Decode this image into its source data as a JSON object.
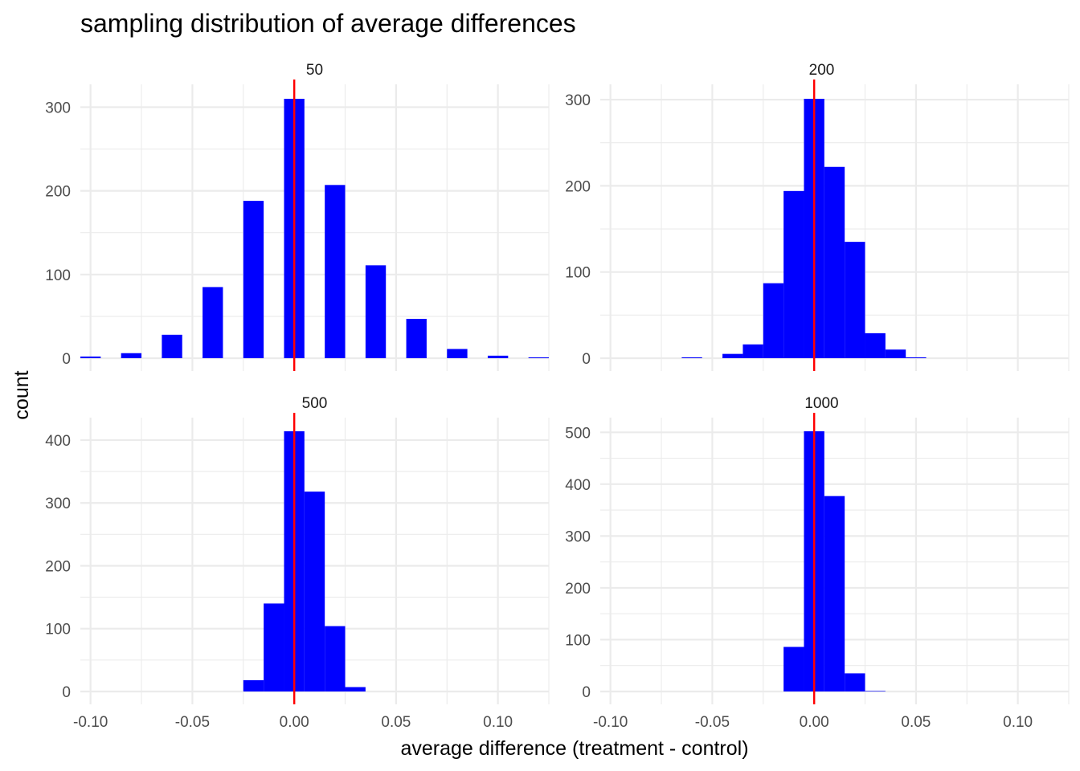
{
  "chart_data": {
    "type": "bar",
    "title": "sampling distribution of average differences",
    "xlabel": "average difference (treatment - control)",
    "ylabel": "count",
    "xlim": [
      -0.105,
      0.125
    ],
    "x_ticks": [
      -0.1,
      -0.05,
      0.0,
      0.05,
      0.1
    ],
    "x_tick_labels": [
      "-0.10",
      "-0.05",
      "0.00",
      "0.05",
      "0.10"
    ],
    "grid": true,
    "bar_color": "#0000ff",
    "reference_line": {
      "x": 0,
      "color": "#ff0000"
    },
    "panels": [
      {
        "label": "50",
        "ylim": [
          0,
          330
        ],
        "y_ticks": [
          0,
          100,
          200,
          300
        ],
        "bin_width": 0.01,
        "bins": [
          {
            "x": -0.1,
            "count": 2
          },
          {
            "x": -0.08,
            "count": 6
          },
          {
            "x": -0.06,
            "count": 28
          },
          {
            "x": -0.04,
            "count": 85
          },
          {
            "x": -0.02,
            "count": 188
          },
          {
            "x": 0.0,
            "count": 310
          },
          {
            "x": 0.02,
            "count": 207
          },
          {
            "x": 0.04,
            "count": 111
          },
          {
            "x": 0.06,
            "count": 47
          },
          {
            "x": 0.08,
            "count": 11
          },
          {
            "x": 0.1,
            "count": 3
          },
          {
            "x": 0.12,
            "count": 1
          }
        ]
      },
      {
        "label": "200",
        "ylim": [
          0,
          315
        ],
        "y_ticks": [
          0,
          100,
          200,
          300
        ],
        "bin_width": 0.01,
        "bins": [
          {
            "x": -0.06,
            "count": 1
          },
          {
            "x": -0.04,
            "count": 5
          },
          {
            "x": -0.03,
            "count": 16
          },
          {
            "x": -0.02,
            "count": 87
          },
          {
            "x": -0.01,
            "count": 194
          },
          {
            "x": 0.0,
            "count": 301
          },
          {
            "x": 0.01,
            "count": 222
          },
          {
            "x": 0.02,
            "count": 135
          },
          {
            "x": 0.03,
            "count": 29
          },
          {
            "x": 0.04,
            "count": 10
          },
          {
            "x": 0.05,
            "count": 1
          }
        ]
      },
      {
        "label": "500",
        "ylim": [
          0,
          435
        ],
        "y_ticks": [
          0,
          100,
          200,
          300,
          400
        ],
        "bin_width": 0.01,
        "bins": [
          {
            "x": -0.02,
            "count": 18
          },
          {
            "x": -0.01,
            "count": 140
          },
          {
            "x": 0.0,
            "count": 414
          },
          {
            "x": 0.01,
            "count": 318
          },
          {
            "x": 0.02,
            "count": 104
          },
          {
            "x": 0.03,
            "count": 7
          }
        ]
      },
      {
        "label": "1000",
        "ylim": [
          0,
          530
        ],
        "y_ticks": [
          0,
          100,
          200,
          300,
          400,
          500
        ],
        "bin_width": 0.01,
        "bins": [
          {
            "x": -0.01,
            "count": 86
          },
          {
            "x": 0.0,
            "count": 502
          },
          {
            "x": 0.01,
            "count": 377
          },
          {
            "x": 0.02,
            "count": 35
          },
          {
            "x": 0.03,
            "count": 1
          }
        ]
      }
    ]
  }
}
